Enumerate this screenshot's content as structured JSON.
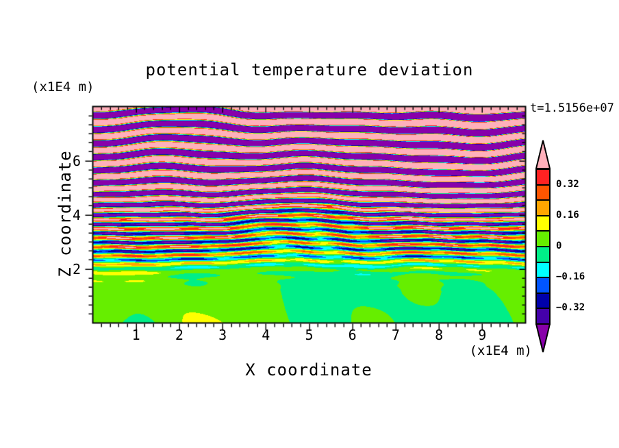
{
  "page": {
    "background": "#FFFFFF",
    "text_color": "#000000"
  },
  "chart_data": {
    "type": "filled-contour",
    "title": "potential temperature deviation",
    "annotation_time": "t=1.5156e+07",
    "xlabel": "X coordinate",
    "x_unit": "(x1E4 m)",
    "ylabel": "Z coordinate",
    "y_unit": "(x1E4 m)",
    "xlim": [
      0,
      10
    ],
    "ylim": [
      0,
      8
    ],
    "x_tick_labels": [
      "1",
      "2",
      "3",
      "4",
      "5",
      "6",
      "7",
      "8",
      "9"
    ],
    "x_tick_values": [
      1,
      2,
      3,
      4,
      5,
      6,
      7,
      8,
      9
    ],
    "x_minor_step": 0.2,
    "y_tick_labels": [
      "2",
      "4",
      "6"
    ],
    "y_tick_values": [
      2,
      4,
      6
    ],
    "y_minor_step": 0.33333,
    "colorbar": {
      "levels": [
        -0.4,
        -0.32,
        -0.24,
        -0.16,
        -0.08,
        0,
        0.08,
        0.16,
        0.24,
        0.32,
        0.4
      ],
      "colors_low_to_high": [
        "#8800AA",
        "#4400AA",
        "#0000AA",
        "#0055FF",
        "#00FFFF",
        "#00EE88",
        "#66EE00",
        "#FFFF00",
        "#FFA500",
        "#FF5500",
        "#FF2222",
        "#FFB0BB"
      ],
      "tick_labels": [
        "0.32",
        "0.16",
        "0",
        "−0.16",
        "−0.32"
      ],
      "tick_values": [
        0.32,
        0.16,
        0,
        -0.16,
        -0.32
      ]
    },
    "field_description": "Gravity-wave-like field: saturated alternating bands beyond ±0.40 (pink/purple) above z≈4.5; dense mixed streaks of ±0.08–0.40 (red–orange–yellow–cyan–blue–navy) between z≈2 and 4.5; weak values within ±0.08 (two greens, occasional yellow/cyan patches) below z≈2. Axes in units of 1E4 m."
  }
}
